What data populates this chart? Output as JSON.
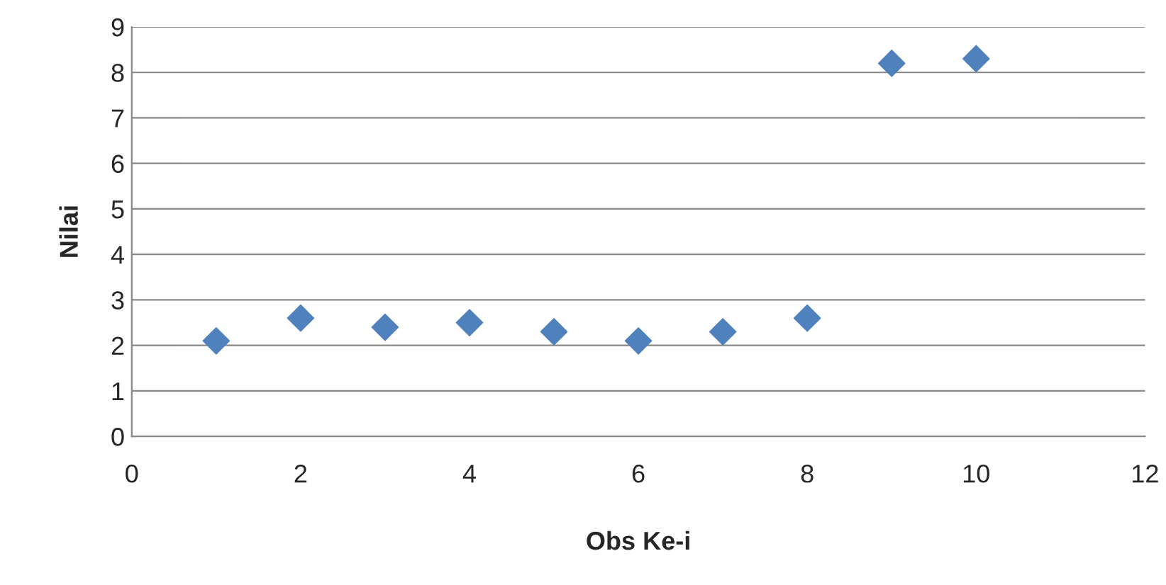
{
  "chart_data": {
    "type": "scatter",
    "xlabel": "Obs Ke-i",
    "ylabel": "Nilai",
    "x": [
      1,
      2,
      3,
      4,
      5,
      6,
      7,
      8,
      9,
      10
    ],
    "series": [
      {
        "color": "#4f81bd",
        "values": [
          2.1,
          2.6,
          2.4,
          2.5,
          2.3,
          2.1,
          2.3,
          2.6,
          8.2,
          8.3
        ]
      }
    ],
    "xlim": [
      0,
      12
    ],
    "xticks": [
      0,
      2,
      4,
      6,
      8,
      10,
      12
    ],
    "ylim": [
      0,
      9
    ],
    "yticks": [
      0,
      1,
      2,
      3,
      4,
      5,
      6,
      7,
      8,
      9
    ],
    "grid": "y",
    "marker": "diamond",
    "legend": false
  }
}
